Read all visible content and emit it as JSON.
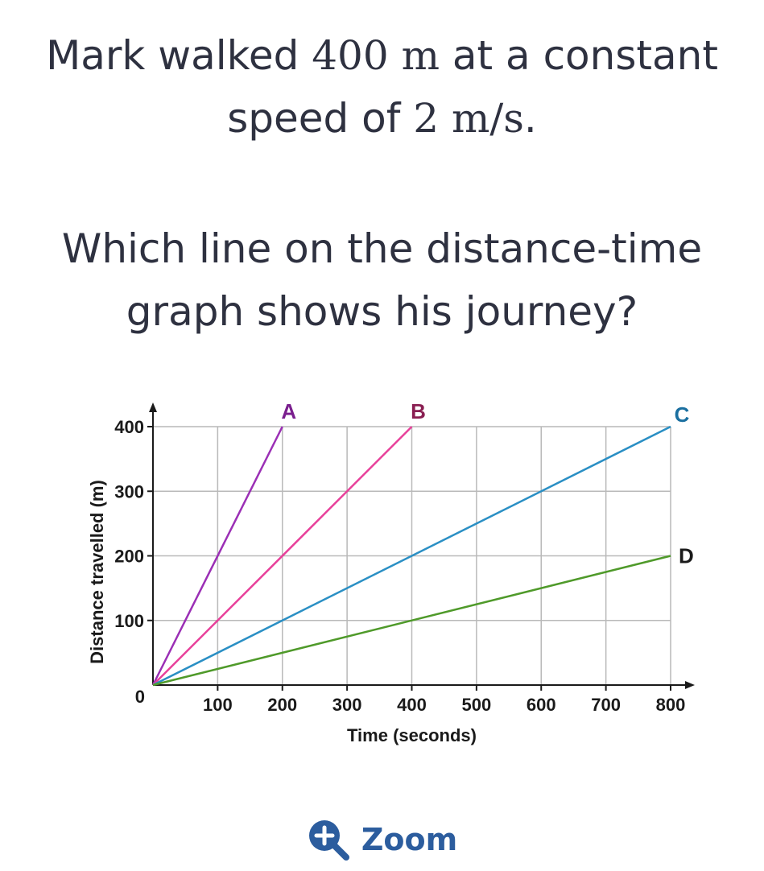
{
  "question": {
    "line1_pre": "Mark walked ",
    "line1_math": "400 m",
    "line1_post": " at a constant",
    "line2_pre": "speed of ",
    "line2_math": "2 m/s",
    "line2_post": ".",
    "line3": "Which line on the distance-time",
    "line4": "graph shows his journey?"
  },
  "zoom_label": "Zoom",
  "chart_data": {
    "type": "line",
    "xlabel": "Time (seconds)",
    "ylabel": "Distance travelled (m)",
    "xlim": [
      0,
      800
    ],
    "ylim": [
      0,
      400
    ],
    "x_ticks": [
      100,
      200,
      300,
      400,
      500,
      600,
      700,
      800
    ],
    "y_ticks": [
      100,
      200,
      300,
      400
    ],
    "origin_label": "0",
    "grid": true,
    "series": [
      {
        "name": "A",
        "color": "#9b2fb5",
        "points": [
          [
            0,
            0
          ],
          [
            200,
            400
          ]
        ]
      },
      {
        "name": "B",
        "color": "#e8409a",
        "points": [
          [
            0,
            0
          ],
          [
            400,
            400
          ]
        ]
      },
      {
        "name": "C",
        "color": "#2a8fc4",
        "points": [
          [
            0,
            0
          ],
          [
            800,
            400
          ]
        ]
      },
      {
        "name": "D",
        "color": "#4f9a2a",
        "points": [
          [
            0,
            0
          ],
          [
            800,
            200
          ]
        ]
      }
    ],
    "label_colors": {
      "A": "#7a1f8e",
      "B": "#8a1f52",
      "C": "#1a6fa0",
      "D": "#1a1a1a"
    }
  }
}
